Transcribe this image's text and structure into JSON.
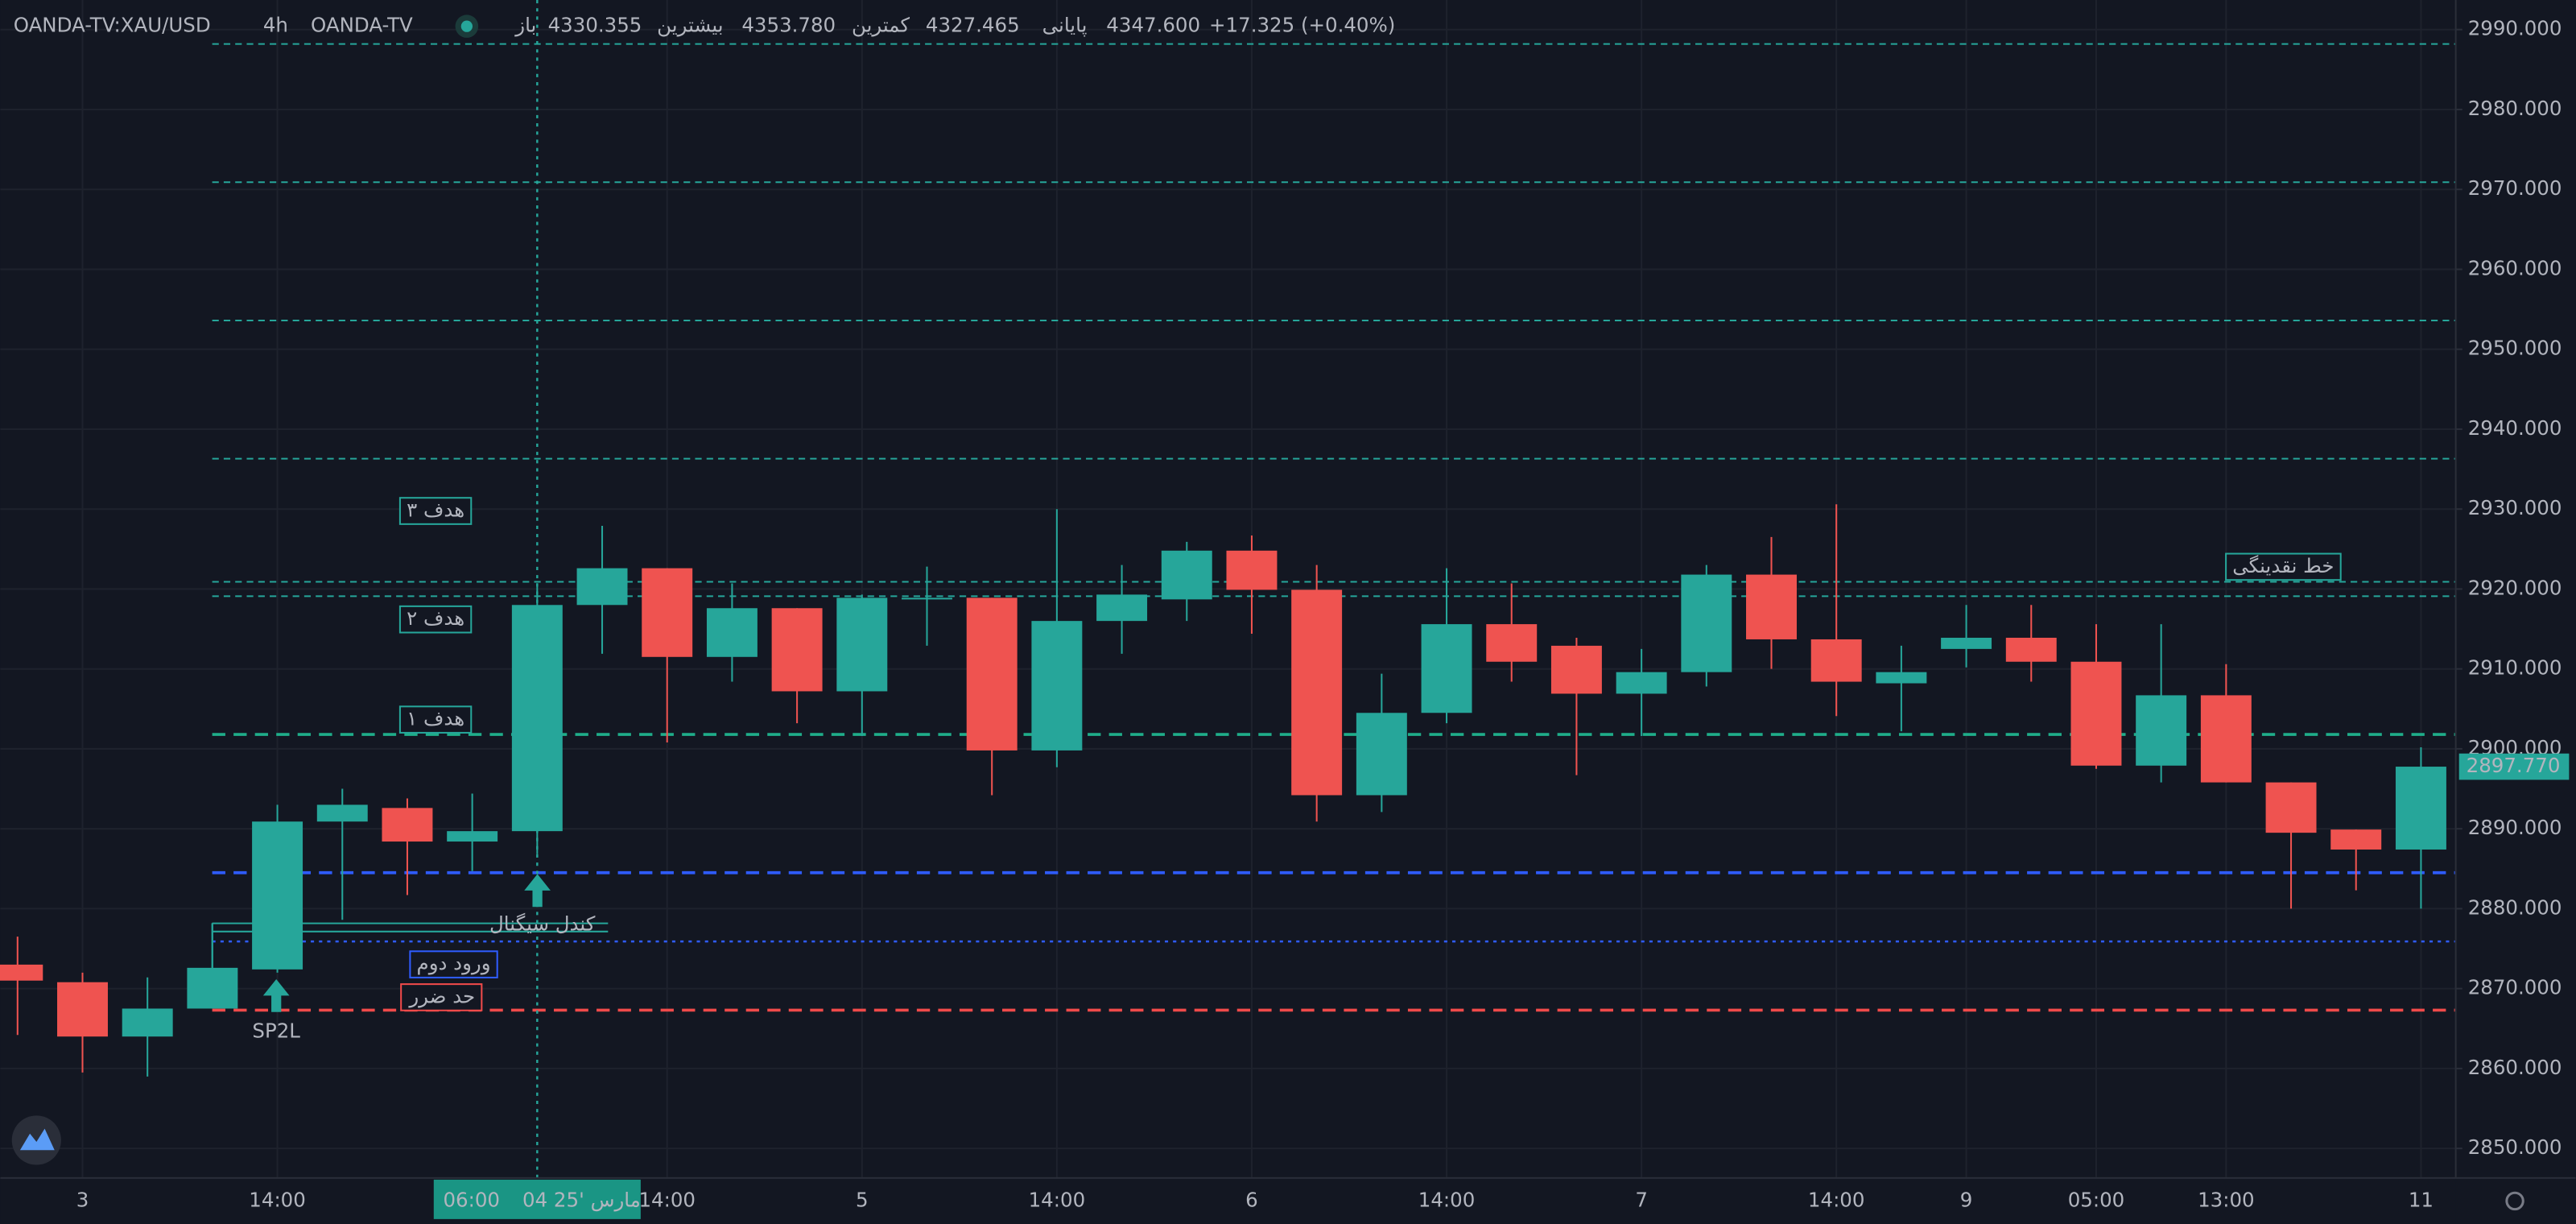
{
  "header": {
    "symbol": "OANDA-TV:XAU/USD",
    "interval": "4h",
    "source": "OANDA-TV",
    "ohlc": [
      {
        "label": "باز",
        "value": "4330.355"
      },
      {
        "label": "بیشترین",
        "value": "4353.780"
      },
      {
        "label": "کمترین",
        "value": "4327.465"
      },
      {
        "label": "پایانی",
        "value": "4347.600"
      }
    ],
    "change": "+17.325 (+0.40%)"
  },
  "chart_data": {
    "type": "candlestick",
    "categories": [
      null,
      "3",
      null,
      null,
      "14:00",
      null,
      null,
      null,
      null,
      null,
      "14:00",
      null,
      null,
      "5",
      null,
      null,
      "14:00",
      null,
      null,
      "6",
      null,
      null,
      "14:00",
      null,
      null,
      "7",
      null,
      null,
      "14:00",
      null,
      "9",
      null,
      "05:00",
      null,
      "13:00",
      null,
      null,
      "11"
    ],
    "open": [
      2873.0,
      2870.8,
      2864.0,
      2867.5,
      2872.4,
      2890.9,
      2892.6,
      2888.4,
      2889.7,
      2918.0,
      2922.6,
      2911.5,
      2917.6,
      2907.2,
      2918.7,
      2918.9,
      2899.8,
      2916.0,
      2918.7,
      2924.8,
      2919.9,
      2894.2,
      2904.5,
      2915.6,
      2912.9,
      2906.9,
      2909.6,
      2921.8,
      2913.7,
      2908.2,
      2912.5,
      2913.9,
      2910.9,
      2897.9,
      2906.7,
      2895.8,
      2889.9,
      2887.4
    ],
    "high": [
      2876.5,
      2872.0,
      2871.4,
      2878.2,
      2893.0,
      2895.0,
      2893.8,
      2894.4,
      2920.7,
      2927.9,
      2922.6,
      2920.7,
      2917.6,
      2919.3,
      2922.8,
      2918.9,
      2930.0,
      2923.0,
      2925.9,
      2926.7,
      2923.0,
      2909.4,
      2922.6,
      2920.7,
      2913.9,
      2912.5,
      2923.0,
      2926.5,
      2930.6,
      2912.9,
      2918.0,
      2918.0,
      2915.6,
      2915.6,
      2910.6,
      2895.8,
      2889.9,
      2900.2
    ],
    "low": [
      2864.2,
      2859.5,
      2859.0,
      2867.5,
      2872.0,
      2878.6,
      2881.7,
      2884.7,
      2886.8,
      2911.9,
      2900.8,
      2908.4,
      2903.2,
      2901.6,
      2912.9,
      2894.2,
      2897.7,
      2911.9,
      2916.0,
      2914.4,
      2890.9,
      2892.1,
      2903.2,
      2908.4,
      2896.7,
      2901.6,
      2907.8,
      2910.0,
      2904.1,
      2902.2,
      2910.2,
      2908.4,
      2897.5,
      2895.8,
      2895.8,
      2880.0,
      2882.3,
      2880.0
    ],
    "close": [
      2871.0,
      2864.0,
      2867.5,
      2872.6,
      2890.9,
      2893.0,
      2888.4,
      2889.7,
      2918.0,
      2922.6,
      2911.5,
      2917.6,
      2907.2,
      2918.9,
      2918.9,
      2899.8,
      2916.0,
      2919.3,
      2924.8,
      2919.9,
      2894.2,
      2904.5,
      2915.6,
      2910.9,
      2906.9,
      2909.6,
      2921.8,
      2913.7,
      2908.4,
      2909.6,
      2913.9,
      2910.9,
      2897.9,
      2906.7,
      2895.8,
      2889.5,
      2887.4,
      2897.77
    ],
    "up_color": "#26a69a",
    "down_color": "#ef5350",
    "ylim": [
      2846.3,
      2993.7
    ],
    "yticks": [
      {
        "value": 2850,
        "label": "2850.000"
      },
      {
        "value": 2860,
        "label": "2860.000"
      },
      {
        "value": 2870,
        "label": "2870.000"
      },
      {
        "value": 2880,
        "label": "2880.000"
      },
      {
        "value": 2890,
        "label": "2890.000"
      },
      {
        "value": 2900,
        "label": "2900.000"
      },
      {
        "value": 2910,
        "label": "2910.000"
      },
      {
        "value": 2920,
        "label": "2920.000"
      },
      {
        "value": 2930,
        "label": "2930.000"
      },
      {
        "value": 2940,
        "label": "2940.000"
      },
      {
        "value": 2950,
        "label": "2950.000"
      },
      {
        "value": 2960,
        "label": "2960.000"
      },
      {
        "value": 2970,
        "label": "2970.000"
      },
      {
        "value": 2980,
        "label": "2980.000"
      },
      {
        "value": 2990,
        "label": "2990.000"
      }
    ],
    "grid": true,
    "last_price": {
      "value": 2897.77,
      "label": "2897.770"
    },
    "crosshair": {
      "date": "04 مارس '25",
      "time": "06:00"
    },
    "levels": [
      {
        "value": 2988.2,
        "color": "#26a69a",
        "style": "dashed"
      },
      {
        "value": 2970.9,
        "color": "#26a69a",
        "style": "dashed"
      },
      {
        "value": 2953.6,
        "color": "#26a69a",
        "style": "dashed"
      },
      {
        "value": 2936.3,
        "color": "#26a69a",
        "style": "dashed"
      },
      {
        "value": 2920.9,
        "color": "#26a69a",
        "style": "dashed"
      },
      {
        "value": 2919.1,
        "color": "#26a69a",
        "style": "dashed"
      },
      {
        "value": 2901.8,
        "color": "#1fae8a",
        "style": "bold-dashed"
      },
      {
        "value": 2884.5,
        "color": "#2f5cff",
        "style": "bold-dashed"
      },
      {
        "value": 2875.9,
        "color": "#2f5cff",
        "style": "dotted"
      },
      {
        "value": 2867.3,
        "color": "#f04a4a",
        "style": "bold-dashed"
      }
    ],
    "annotations": [
      {
        "text": "هدف ۳",
        "color": "#26a69a",
        "boxed": true
      },
      {
        "text": "هدف ۲",
        "color": "#26a69a",
        "boxed": true
      },
      {
        "text": "هدف ۱",
        "color": "#26a69a",
        "boxed": true
      },
      {
        "text": "ورود دوم",
        "color": "#2f5cff",
        "boxed": true
      },
      {
        "text": "حد ضرر",
        "color": "#f04a4a",
        "boxed": true
      },
      {
        "text": "خط نقدینگی",
        "color": "#26a69a",
        "boxed": true
      },
      {
        "text": "کندل سیگنال",
        "color": "#26a69a",
        "boxed": false
      },
      {
        "text": "SP2L",
        "color": "#26a69a",
        "boxed": false
      }
    ]
  }
}
